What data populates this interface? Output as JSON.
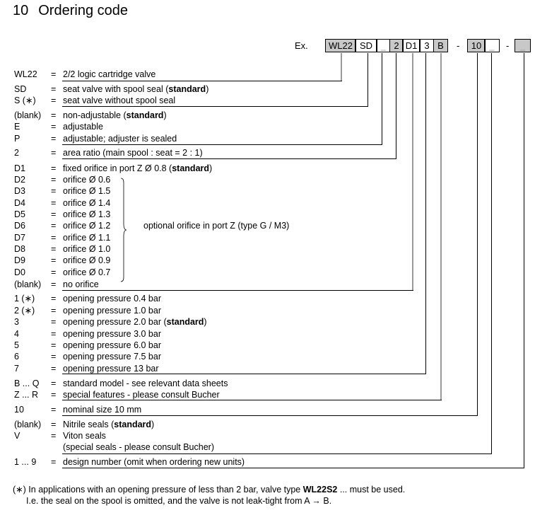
{
  "heading": {
    "number": "10",
    "title": "Ordering code"
  },
  "example": {
    "label": "Ex.",
    "boxes": [
      "WL22",
      "SD",
      "_",
      "2",
      "D1",
      "3",
      "B",
      "10",
      "_",
      "_"
    ],
    "separator": "-"
  },
  "rows": [
    {
      "code": "WL22",
      "pre": "2/2 logic cartridge valve",
      "bold": "",
      "post": ""
    },
    {
      "code": "SD",
      "pre": "seat valve with spool seal (",
      "bold": "standard",
      "post": ")"
    },
    {
      "code": "S (∗)",
      "pre": "seat valve without spool seal",
      "bold": "",
      "post": ""
    },
    {
      "code": "(blank)",
      "pre": "non-adjustable  (",
      "bold": "standard",
      "post": ")"
    },
    {
      "code": "E",
      "pre": "adjustable",
      "bold": "",
      "post": ""
    },
    {
      "code": "P",
      "pre": "adjustable; adjuster is sealed",
      "bold": "",
      "post": ""
    },
    {
      "code": "2",
      "pre": "area ratio (main spool : seat = 2 : 1)",
      "bold": "",
      "post": ""
    },
    {
      "code": "D1",
      "pre": "fixed orifice in port Z Ø 0.8 (",
      "bold": "standard",
      "post": ")"
    },
    {
      "code": "D2",
      "pre": "orifice Ø 0.6",
      "bold": "",
      "post": ""
    },
    {
      "code": "D3",
      "pre": "orifice Ø 1.5",
      "bold": "",
      "post": ""
    },
    {
      "code": "D4",
      "pre": "orifice Ø 1.4",
      "bold": "",
      "post": ""
    },
    {
      "code": "D5",
      "pre": "orifice Ø 1.3",
      "bold": "",
      "post": ""
    },
    {
      "code": "D6",
      "pre": "orifice Ø 1.2",
      "bold": "",
      "post": ""
    },
    {
      "code": "D7",
      "pre": "orifice Ø 1.1",
      "bold": "",
      "post": ""
    },
    {
      "code": "D8",
      "pre": "orifice Ø 1.0",
      "bold": "",
      "post": ""
    },
    {
      "code": "D9",
      "pre": "orifice Ø 0.9",
      "bold": "",
      "post": ""
    },
    {
      "code": "D0",
      "pre": "orifice Ø 0.7",
      "bold": "",
      "post": ""
    },
    {
      "code": "(blank)",
      "pre": "no orifice",
      "bold": "",
      "post": ""
    },
    {
      "code": "1 (∗)",
      "pre": "opening pressure 0.4 bar",
      "bold": "",
      "post": ""
    },
    {
      "code": "2 (∗)",
      "pre": "opening pressure 1.0 bar",
      "bold": "",
      "post": ""
    },
    {
      "code": "3",
      "pre": "opening pressure 2.0 bar (",
      "bold": "standard",
      "post": ")"
    },
    {
      "code": "4",
      "pre": "opening pressure 3.0 bar",
      "bold": "",
      "post": ""
    },
    {
      "code": "5",
      "pre": "opening pressure 6.0 bar",
      "bold": "",
      "post": ""
    },
    {
      "code": "6",
      "pre": "opening pressure 7.5 bar",
      "bold": "",
      "post": ""
    },
    {
      "code": "7",
      "pre": "opening pressure 13 bar",
      "bold": "",
      "post": ""
    },
    {
      "code": "B ... Q",
      "pre": "standard model - see relevant data sheets",
      "bold": "",
      "post": ""
    },
    {
      "code": "Z ... R",
      "pre": "special features - please consult Bucher",
      "bold": "",
      "post": ""
    },
    {
      "code": "10",
      "pre": "nominal size 10 mm",
      "bold": "",
      "post": ""
    },
    {
      "code": "(blank)",
      "pre": "Nitrile seals (",
      "bold": "standard",
      "post": ")"
    },
    {
      "code": "V",
      "pre": "Viton seals",
      "bold": "",
      "post": ""
    },
    {
      "code": "",
      "pre": "(special seals - please consult Bucher)",
      "bold": "",
      "post": ""
    },
    {
      "code": "1 ... 9",
      "pre": "design number (omit when ordering new units)",
      "bold": "",
      "post": ""
    }
  ],
  "equals": "=",
  "brace_label": "optional orifice in port Z (type G / M3)",
  "footnote": {
    "mark": "(∗)",
    "line1_pre": "In applications with an opening pressure of less than 2 bar, valve type ",
    "line1_bold": "WL22S2",
    "line1_post": " ... must be used.",
    "line2": "I.e. the seal on the spool is omitted, and the valve is not leak-tight from A → B."
  }
}
